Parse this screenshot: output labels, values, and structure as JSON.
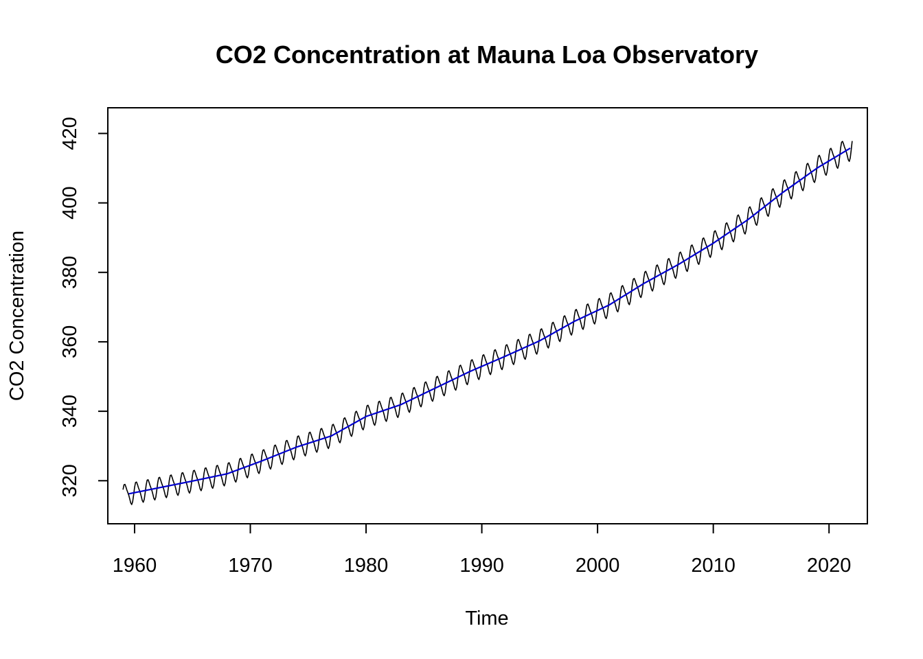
{
  "chart_data": {
    "type": "line",
    "title": "CO2 Concentration at Mauna Loa Observatory",
    "xlabel": "Time",
    "ylabel": "CO2 Concentration",
    "xlim": [
      1959.0,
      2022.0
    ],
    "ylim": [
      310.0,
      425.0
    ],
    "x_ticks": [
      1960,
      1970,
      1980,
      1990,
      2000,
      2010,
      2020
    ],
    "y_ticks": [
      320,
      340,
      360,
      380,
      400,
      420
    ],
    "grid": false,
    "legend": "none",
    "colors": {
      "monthly": "#000000",
      "trend": "#0000cd"
    },
    "trend_anchor_years": [
      1959.0,
      1962.0,
      1965.0,
      1968.0,
      1971.0,
      1974.0,
      1977.0,
      1980.0,
      1983.0,
      1986.0,
      1989.0,
      1992.0,
      1995.0,
      1998.0,
      2001.0,
      2004.0,
      2007.0,
      2010.0,
      2013.0,
      2016.0,
      2019.0,
      2022.0
    ],
    "trend_anchor_values": [
      315.9,
      317.9,
      319.9,
      322.0,
      325.7,
      329.7,
      332.9,
      338.5,
      341.9,
      346.7,
      351.5,
      355.8,
      360.3,
      365.9,
      370.6,
      376.8,
      382.3,
      388.4,
      395.2,
      403.0,
      410.1,
      416.1
    ],
    "seasonal_amplitude": 3.2,
    "series": [
      {
        "name": "",
        "role": "monthly",
        "start": 1959.0,
        "end": 2022.0,
        "frequency": 12
      },
      {
        "name": "",
        "role": "trend",
        "start": 1959.5,
        "end": 2021.9,
        "frequency": 12
      }
    ]
  }
}
